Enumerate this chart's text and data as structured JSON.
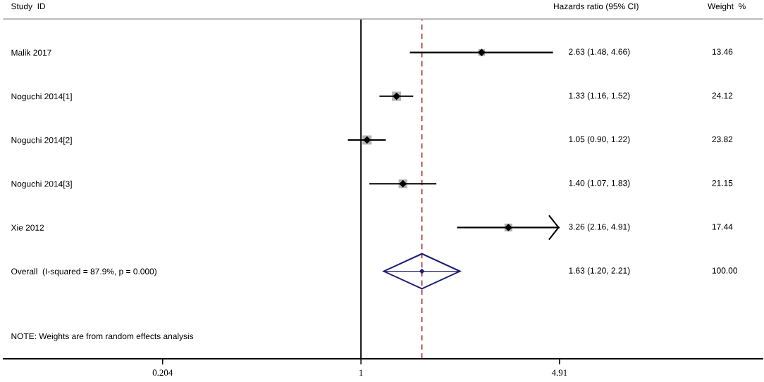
{
  "chart_data": {
    "type": "scatter",
    "orientation": "horizontal",
    "ylabel": "Study  ID",
    "categories": [
      "Malik 2017",
      "Noguchi 2014[1]",
      "Noguchi 2014[2]",
      "Noguchi 2014[3]",
      "Xie 2012",
      "Overall  (I-squared = 87.9%, p = 0.000)"
    ],
    "series": [
      {
        "type": "bubble",
        "marker": "square",
        "color": "#b3b3b3",
        "values": [
          2.63,
          1.33,
          1.05,
          1.4,
          3.26,
          null
        ],
        "sizes": [
          0.558,
          1,
          0.988,
          0.877,
          0.723,
          null
        ]
      },
      {
        "type": "scatter",
        "marker": "diamond",
        "color": "#000000",
        "values": [
          2.63,
          1.33,
          1.05,
          1.4,
          3.26,
          null
        ],
        "errors": [
          [
            1.48,
            4.66
          ],
          [
            1.16,
            1.52
          ],
          [
            0.9,
            1.22
          ],
          [
            1.07,
            1.83
          ],
          [
            2.16,
            4.91
          ],
          null
        ]
      },
      {
        "type": "scatter",
        "marker": "diamond",
        "color": "#1f1f75",
        "values": [
          null,
          null,
          null,
          null,
          null,
          1.63
        ],
        "errors": [
          null,
          null,
          null,
          null,
          null,
          [
            1.2,
            2.21
          ]
        ]
      }
    ],
    "log": "x",
    "xlim": [
      0.057,
      25
    ],
    "xticks": [
      0.204,
      1,
      4.91
    ],
    "ref_lines": [
      {
        "axis": "x",
        "value": 1,
        "color": "#000000",
        "line_style": "solid"
      },
      {
        "axis": "x",
        "value": 1.63,
        "color": "#a31f1f",
        "line_style": "dashed"
      }
    ],
    "annotations": [
      "Hazards ratio (95% CI)",
      "Weight  %",
      "2.63 (1.48, 4.66)",
      "1.33 (1.16, 1.52)",
      "1.05 (0.90, 1.22)",
      "1.40 (1.07, 1.83)",
      "3.26 (2.16, 4.91)",
      "1.63 (1.20, 2.21)",
      "13.46",
      "24.12",
      "23.82",
      "21.15",
      "17.44",
      "100.00",
      "NOTE: Weights are from random effects analysis"
    ]
  }
}
